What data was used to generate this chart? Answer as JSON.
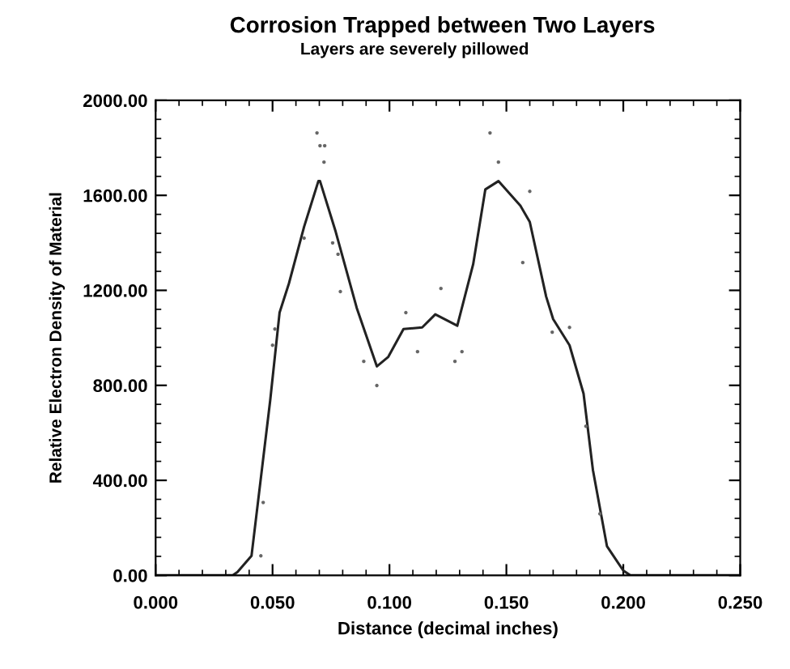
{
  "chart_data": {
    "type": "line",
    "title": "Corrosion Trapped between Two Layers",
    "subtitle": "Layers are severely pillowed",
    "xlabel": "Distance (decimal inches)",
    "ylabel": "Relative Electron Density of Material",
    "xlim": [
      0,
      0.25
    ],
    "ylim": [
      0,
      2000
    ],
    "xticks": [
      {
        "value": 0,
        "label": "0.000"
      },
      {
        "value": 0.05,
        "label": "0.050"
      },
      {
        "value": 0.1,
        "label": "0.100"
      },
      {
        "value": 0.15,
        "label": "0.150"
      },
      {
        "value": 0.2,
        "label": "0.200"
      },
      {
        "value": 0.25,
        "label": "0.250"
      }
    ],
    "yticks": [
      {
        "value": 0,
        "label": "0.00"
      },
      {
        "value": 400,
        "label": "400.00"
      },
      {
        "value": 800,
        "label": "800.00"
      },
      {
        "value": 1200,
        "label": "1200.00"
      },
      {
        "value": 1600,
        "label": "1600.00"
      },
      {
        "value": 2000,
        "label": "2000.00"
      }
    ],
    "grid": false,
    "legend": false,
    "series": [
      {
        "color": "#222222",
        "line_style": "solid",
        "marker": "none",
        "x": [
          0,
          0.033,
          0.035,
          0.041,
          0.049,
          0.053,
          0.057,
          0.0635,
          0.0696,
          0.0703,
          0.077,
          0.086,
          0.0946,
          0.0995,
          0.106,
          0.114,
          0.1196,
          0.129,
          0.1358,
          0.141,
          0.1466,
          0.156,
          0.16,
          0.167,
          0.17,
          0.177,
          0.183,
          0.187,
          0.193,
          0.2,
          0.203,
          0.25
        ],
        "values": [
          0,
          0,
          14,
          82,
          737,
          1106,
          1229,
          1468,
          1660,
          1660,
          1447,
          1126,
          880,
          920,
          1037,
          1044,
          1099,
          1051,
          1310,
          1625,
          1660,
          1556,
          1488,
          1174,
          1079,
          969,
          765,
          444,
          123,
          20,
          0,
          0
        ]
      },
      {
        "type": "scatter",
        "color": "#666666",
        "marker": "circle",
        "x": [
          0.045,
          0.046,
          0.05,
          0.051,
          0.0635,
          0.069,
          0.0703,
          0.072,
          0.0723,
          0.0757,
          0.078,
          0.079,
          0.089,
          0.0946,
          0.107,
          0.112,
          0.122,
          0.128,
          0.131,
          0.143,
          0.1466,
          0.157,
          0.16,
          0.1696,
          0.177,
          0.184,
          0.19
        ],
        "values": [
          82,
          307,
          969,
          1037,
          1420,
          1863,
          1809,
          1740,
          1809,
          1400,
          1352,
          1195,
          901,
          799,
          1106,
          942,
          1208,
          901,
          942,
          1863,
          1740,
          1317,
          1617,
          1024,
          1044,
          628,
          259
        ]
      }
    ]
  }
}
